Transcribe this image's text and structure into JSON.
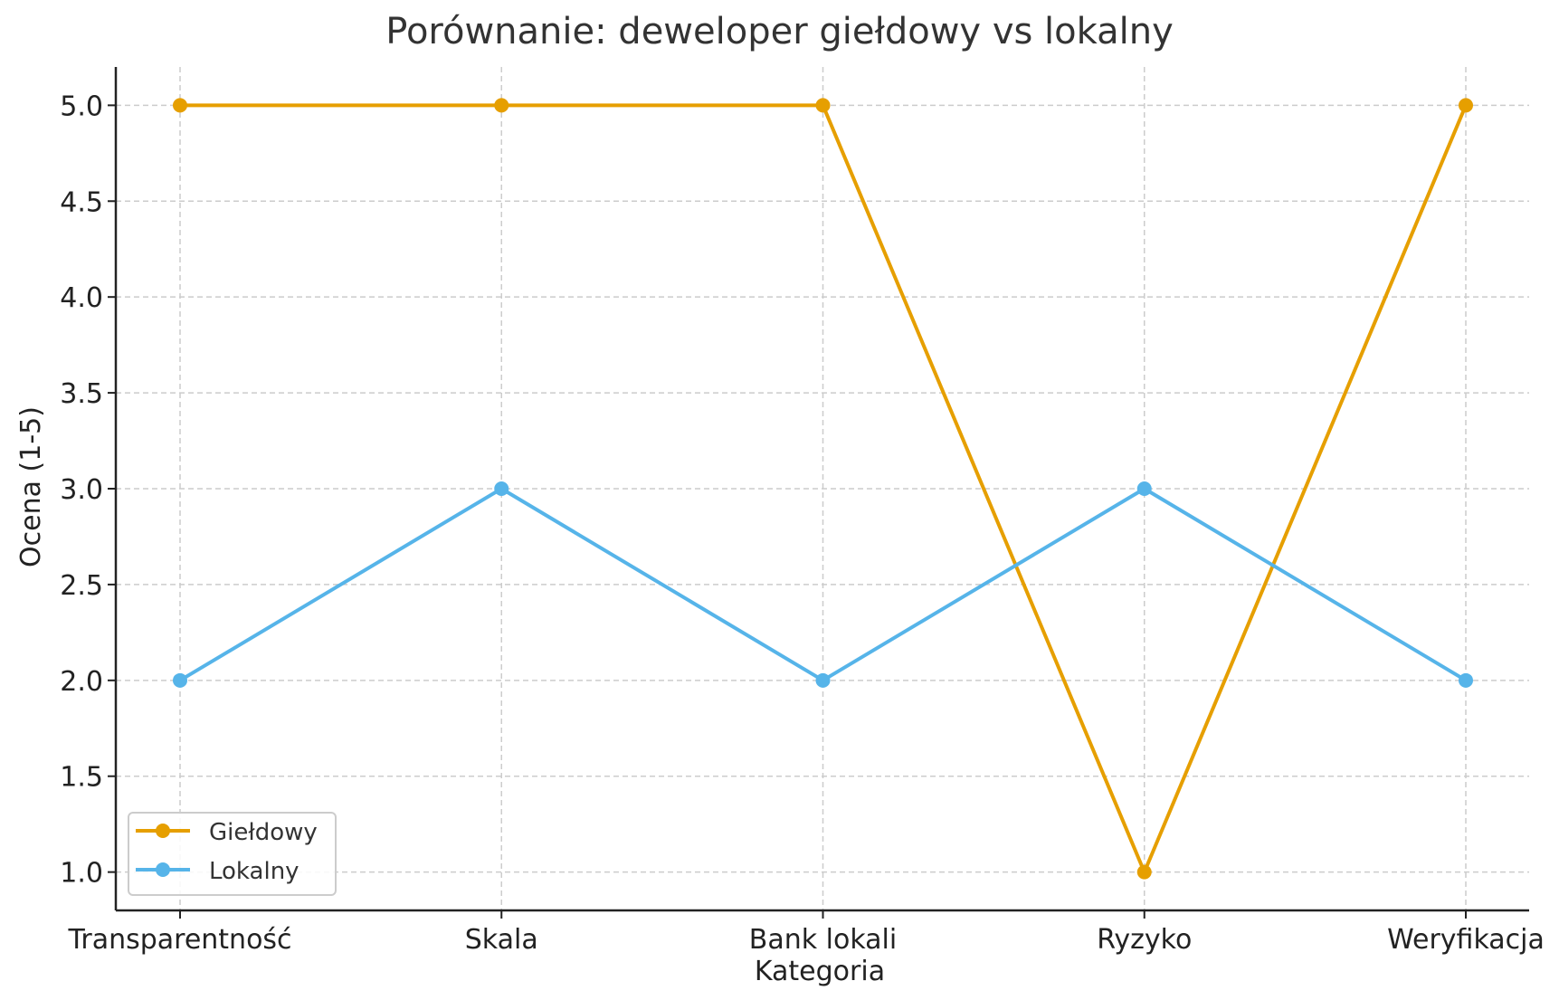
{
  "chart_data": {
    "type": "line",
    "title": "Porównanie: deweloper giełdowy vs lokalny",
    "xlabel": "Kategoria",
    "ylabel": "Ocena (1-5)",
    "categories": [
      "Transparentność",
      "Skala",
      "Bank lokali",
      "Ryzyko",
      "Weryfikacja"
    ],
    "series": [
      {
        "name": "Giełdowy",
        "color": "#E69F00",
        "values": [
          5,
          5,
          5,
          1,
          5
        ]
      },
      {
        "name": "Lokalny",
        "color": "#56B4E9",
        "values": [
          2,
          3,
          2,
          3,
          2
        ]
      }
    ],
    "ylim": [
      0.8,
      5.2
    ],
    "yticks": [
      "1.0",
      "1.5",
      "2.0",
      "2.5",
      "3.0",
      "3.5",
      "4.0",
      "4.5",
      "5.0"
    ],
    "grid": true,
    "legend_position": "lower left"
  }
}
